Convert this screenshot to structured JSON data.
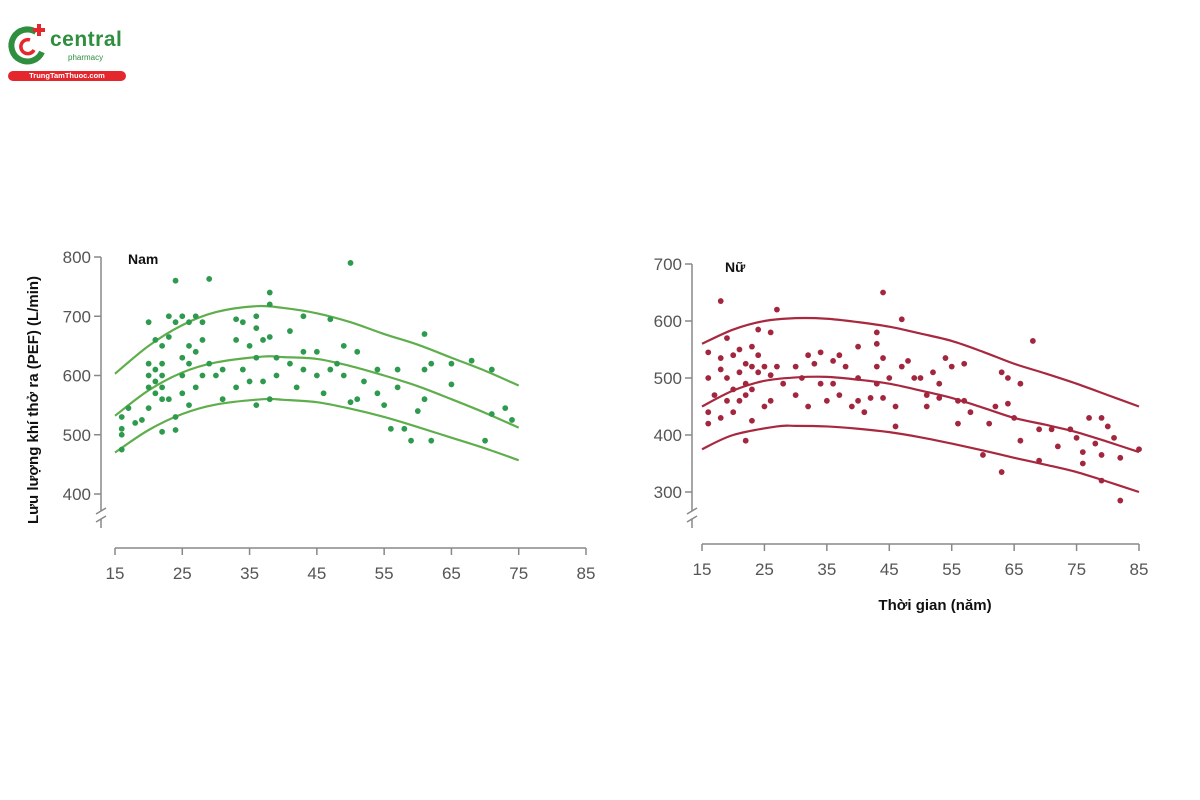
{
  "logo": {
    "name": "central",
    "sub": "pharmacy",
    "site": "TrungTamThuoc.com"
  },
  "colors": {
    "male": "#2e9a4e",
    "male_curve": "#5fae4d",
    "female": "#a3263f",
    "female_curve": "#a8283f",
    "axis": "#888888"
  },
  "chart_data": [
    {
      "type": "scatter",
      "title": "Nam",
      "ylabel": "Lưu lượng khí thở ra (PEF) (L/min)",
      "xlabel": "",
      "xlim": [
        15,
        85
      ],
      "ylim": [
        400,
        800
      ],
      "xticks": [
        15,
        25,
        35,
        45,
        55,
        65,
        75,
        85
      ],
      "yticks": [
        400,
        500,
        600,
        700,
        800
      ],
      "axis_break": true,
      "points": [
        [
          16,
          475
        ],
        [
          16,
          500
        ],
        [
          16,
          510
        ],
        [
          16,
          530
        ],
        [
          17,
          545
        ],
        [
          18,
          520
        ],
        [
          19,
          525
        ],
        [
          20,
          690
        ],
        [
          20,
          620
        ],
        [
          20,
          600
        ],
        [
          20,
          580
        ],
        [
          20,
          545
        ],
        [
          21,
          660
        ],
        [
          21,
          610
        ],
        [
          21,
          590
        ],
        [
          21,
          570
        ],
        [
          22,
          650
        ],
        [
          22,
          620
        ],
        [
          22,
          600
        ],
        [
          22,
          580
        ],
        [
          22,
          560
        ],
        [
          22,
          505
        ],
        [
          23,
          665
        ],
        [
          23,
          560
        ],
        [
          23,
          700
        ],
        [
          24,
          760
        ],
        [
          24,
          690
        ],
        [
          24,
          530
        ],
        [
          24,
          508
        ],
        [
          25,
          700
        ],
        [
          25,
          630
        ],
        [
          25,
          600
        ],
        [
          25,
          570
        ],
        [
          26,
          690
        ],
        [
          26,
          650
        ],
        [
          26,
          620
        ],
        [
          26,
          550
        ],
        [
          27,
          700
        ],
        [
          27,
          640
        ],
        [
          27,
          580
        ],
        [
          28,
          690
        ],
        [
          28,
          660
        ],
        [
          28,
          600
        ],
        [
          29,
          763
        ],
        [
          29,
          620
        ],
        [
          30,
          600
        ],
        [
          31,
          610
        ],
        [
          31,
          560
        ],
        [
          33,
          695
        ],
        [
          33,
          660
        ],
        [
          33,
          580
        ],
        [
          34,
          690
        ],
        [
          34,
          610
        ],
        [
          35,
          650
        ],
        [
          35,
          590
        ],
        [
          36,
          700
        ],
        [
          36,
          680
        ],
        [
          36,
          630
        ],
        [
          36,
          550
        ],
        [
          37,
          660
        ],
        [
          37,
          590
        ],
        [
          38,
          740
        ],
        [
          38,
          720
        ],
        [
          38,
          665
        ],
        [
          38,
          560
        ],
        [
          39,
          630
        ],
        [
          39,
          600
        ],
        [
          41,
          620
        ],
        [
          41,
          675
        ],
        [
          42,
          580
        ],
        [
          43,
          700
        ],
        [
          43,
          640
        ],
        [
          43,
          610
        ],
        [
          45,
          640
        ],
        [
          45,
          600
        ],
        [
          46,
          570
        ],
        [
          47,
          695
        ],
        [
          47,
          610
        ],
        [
          48,
          620
        ],
        [
          49,
          650
        ],
        [
          49,
          600
        ],
        [
          50,
          790
        ],
        [
          50,
          555
        ],
        [
          51,
          640
        ],
        [
          51,
          560
        ],
        [
          52,
          590
        ],
        [
          54,
          610
        ],
        [
          54,
          570
        ],
        [
          55,
          550
        ],
        [
          56,
          510
        ],
        [
          57,
          610
        ],
        [
          57,
          580
        ],
        [
          58,
          510
        ],
        [
          59,
          490
        ],
        [
          60,
          540
        ],
        [
          61,
          610
        ],
        [
          61,
          670
        ],
        [
          61,
          560
        ],
        [
          62,
          490
        ],
        [
          62,
          620
        ],
        [
          65,
          620
        ],
        [
          65,
          585
        ],
        [
          68,
          625
        ],
        [
          70,
          490
        ],
        [
          71,
          610
        ],
        [
          71,
          535
        ],
        [
          73,
          545
        ],
        [
          74,
          525
        ]
      ],
      "curves": [
        {
          "name": "upper",
          "x": [
            15,
            20,
            25,
            30,
            36,
            40,
            45,
            50,
            55,
            60,
            65,
            70,
            75
          ],
          "y": [
            603,
            650,
            685,
            707,
            717,
            714,
            705,
            690,
            670,
            652,
            630,
            608,
            583
          ]
        },
        {
          "name": "median",
          "x": [
            15,
            20,
            25,
            30,
            37,
            40,
            45,
            50,
            55,
            60,
            65,
            70,
            75
          ],
          "y": [
            532,
            575,
            605,
            622,
            632,
            631,
            628,
            616,
            600,
            582,
            560,
            537,
            512
          ]
        },
        {
          "name": "lower",
          "x": [
            15,
            20,
            25,
            30,
            37,
            40,
            45,
            50,
            55,
            60,
            65,
            70,
            75
          ],
          "y": [
            470,
            508,
            535,
            551,
            560,
            559,
            555,
            544,
            530,
            513,
            495,
            477,
            457
          ]
        }
      ]
    },
    {
      "type": "scatter",
      "title": "Nữ",
      "ylabel": "",
      "xlabel": "Thời gian (năm)",
      "xlim": [
        15,
        85
      ],
      "ylim": [
        300,
        700
      ],
      "xticks": [
        15,
        25,
        35,
        45,
        55,
        65,
        75,
        85
      ],
      "yticks": [
        300,
        400,
        500,
        600,
        700
      ],
      "axis_break": true,
      "points": [
        [
          16,
          545
        ],
        [
          16,
          500
        ],
        [
          16,
          440
        ],
        [
          16,
          420
        ],
        [
          17,
          470
        ],
        [
          18,
          635
        ],
        [
          18,
          535
        ],
        [
          18,
          515
        ],
        [
          18,
          430
        ],
        [
          19,
          570
        ],
        [
          19,
          500
        ],
        [
          19,
          460
        ],
        [
          20,
          540
        ],
        [
          20,
          480
        ],
        [
          20,
          440
        ],
        [
          21,
          550
        ],
        [
          21,
          510
        ],
        [
          21,
          460
        ],
        [
          22,
          525
        ],
        [
          22,
          490
        ],
        [
          22,
          470
        ],
        [
          22,
          390
        ],
        [
          23,
          555
        ],
        [
          23,
          520
        ],
        [
          23,
          480
        ],
        [
          23,
          425
        ],
        [
          24,
          585
        ],
        [
          24,
          540
        ],
        [
          24,
          510
        ],
        [
          25,
          520
        ],
        [
          25,
          450
        ],
        [
          26,
          580
        ],
        [
          26,
          505
        ],
        [
          26,
          460
        ],
        [
          27,
          620
        ],
        [
          27,
          520
        ],
        [
          28,
          490
        ],
        [
          30,
          520
        ],
        [
          30,
          470
        ],
        [
          31,
          500
        ],
        [
          32,
          540
        ],
        [
          32,
          450
        ],
        [
          33,
          525
        ],
        [
          34,
          545
        ],
        [
          34,
          490
        ],
        [
          35,
          460
        ],
        [
          36,
          530
        ],
        [
          36,
          490
        ],
        [
          37,
          540
        ],
        [
          37,
          470
        ],
        [
          38,
          520
        ],
        [
          39,
          450
        ],
        [
          40,
          555
        ],
        [
          40,
          500
        ],
        [
          40,
          460
        ],
        [
          41,
          440
        ],
        [
          42,
          465
        ],
        [
          43,
          580
        ],
        [
          43,
          560
        ],
        [
          43,
          520
        ],
        [
          43,
          490
        ],
        [
          44,
          650
        ],
        [
          44,
          535
        ],
        [
          44,
          465
        ],
        [
          45,
          500
        ],
        [
          46,
          415
        ],
        [
          46,
          450
        ],
        [
          47,
          603
        ],
        [
          47,
          520
        ],
        [
          48,
          530
        ],
        [
          49,
          500
        ],
        [
          50,
          500
        ],
        [
          51,
          450
        ],
        [
          51,
          470
        ],
        [
          52,
          510
        ],
        [
          53,
          490
        ],
        [
          53,
          465
        ],
        [
          54,
          535
        ],
        [
          55,
          520
        ],
        [
          56,
          460
        ],
        [
          56,
          420
        ],
        [
          57,
          525
        ],
        [
          57,
          460
        ],
        [
          58,
          440
        ],
        [
          60,
          365
        ],
        [
          61,
          420
        ],
        [
          62,
          450
        ],
        [
          63,
          510
        ],
        [
          63,
          335
        ],
        [
          64,
          500
        ],
        [
          64,
          455
        ],
        [
          65,
          430
        ],
        [
          66,
          490
        ],
        [
          66,
          390
        ],
        [
          68,
          565
        ],
        [
          69,
          410
        ],
        [
          69,
          355
        ],
        [
          71,
          410
        ],
        [
          72,
          380
        ],
        [
          74,
          410
        ],
        [
          75,
          395
        ],
        [
          76,
          370
        ],
        [
          76,
          350
        ],
        [
          77,
          430
        ],
        [
          78,
          385
        ],
        [
          79,
          430
        ],
        [
          79,
          365
        ],
        [
          79,
          320
        ],
        [
          80,
          415
        ],
        [
          81,
          395
        ],
        [
          82,
          285
        ],
        [
          82,
          360
        ],
        [
          85,
          375
        ]
      ],
      "curves": [
        {
          "name": "upper",
          "x": [
            15,
            20,
            25,
            30,
            35,
            40,
            45,
            50,
            55,
            60,
            65,
            70,
            75,
            80,
            85
          ],
          "y": [
            560,
            585,
            600,
            605,
            604,
            598,
            590,
            578,
            565,
            546,
            525,
            508,
            490,
            470,
            450
          ]
        },
        {
          "name": "median",
          "x": [
            15,
            20,
            25,
            30,
            35,
            40,
            45,
            50,
            55,
            60,
            65,
            70,
            75,
            80,
            85
          ],
          "y": [
            450,
            478,
            495,
            501,
            502,
            497,
            490,
            478,
            465,
            448,
            430,
            418,
            405,
            388,
            370
          ]
        },
        {
          "name": "lower",
          "x": [
            15,
            20,
            27,
            30,
            35,
            40,
            45,
            50,
            55,
            60,
            65,
            70,
            75,
            80,
            85
          ],
          "y": [
            375,
            400,
            415,
            416,
            415,
            411,
            405,
            396,
            385,
            373,
            360,
            348,
            335,
            318,
            300
          ]
        }
      ]
    }
  ]
}
